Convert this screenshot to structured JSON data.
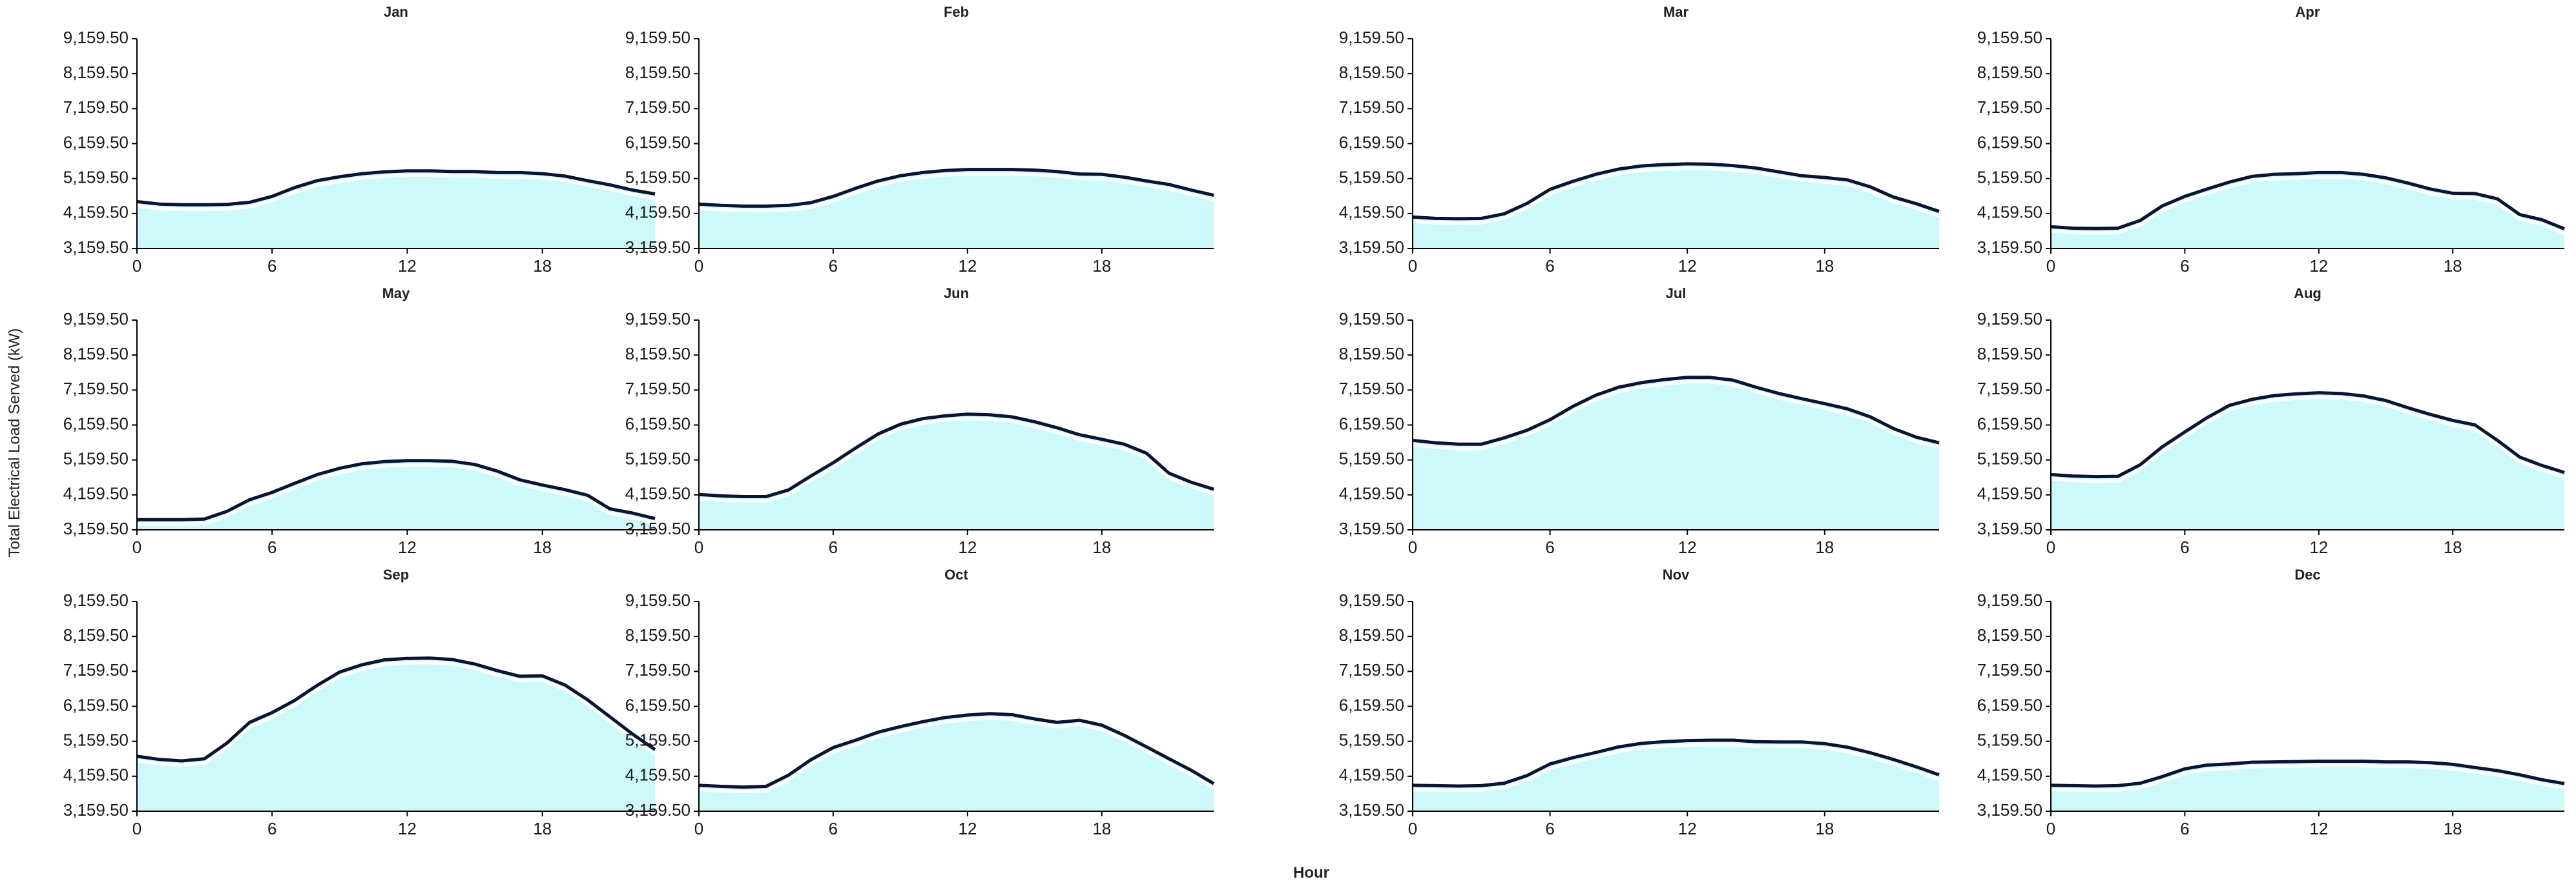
{
  "chart_data": {
    "type": "area",
    "ylabel": "Total Electrical Load Served (kW)",
    "xlabel": "Hour",
    "xlim": [
      0,
      23
    ],
    "ylim": [
      3159.5,
      9159.5
    ],
    "xticks": [
      "0",
      "6",
      "12",
      "18"
    ],
    "yticks": [
      "3,159.50",
      "4,159.50",
      "5,159.50",
      "6,159.50",
      "7,159.50",
      "8,159.50",
      "9,159.50"
    ],
    "series": [
      {
        "name": "Jan",
        "values": [
          4500,
          4430,
          4410,
          4410,
          4420,
          4480,
          4650,
          4900,
          5100,
          5210,
          5300,
          5350,
          5380,
          5380,
          5360,
          5360,
          5330,
          5330,
          5300,
          5230,
          5100,
          4980,
          4830,
          4720
        ]
      },
      {
        "name": "Feb",
        "values": [
          4430,
          4390,
          4370,
          4370,
          4390,
          4470,
          4650,
          4880,
          5090,
          5240,
          5330,
          5390,
          5420,
          5420,
          5420,
          5400,
          5360,
          5290,
          5280,
          5200,
          5090,
          4990,
          4830,
          4680
        ]
      },
      {
        "name": "Mar",
        "values": [
          4060,
          4020,
          4010,
          4020,
          4150,
          4450,
          4850,
          5080,
          5280,
          5430,
          5520,
          5560,
          5580,
          5570,
          5530,
          5460,
          5350,
          5240,
          5190,
          5120,
          4920,
          4630,
          4440,
          4220
        ]
      },
      {
        "name": "Apr",
        "values": [
          3780,
          3740,
          3730,
          3740,
          3960,
          4380,
          4650,
          4860,
          5060,
          5220,
          5280,
          5300,
          5330,
          5330,
          5280,
          5180,
          5030,
          4860,
          4740,
          4730,
          4580,
          4130,
          3980,
          3720
        ]
      },
      {
        "name": "May",
        "values": [
          3450,
          3450,
          3450,
          3470,
          3690,
          4020,
          4230,
          4490,
          4740,
          4920,
          5050,
          5110,
          5140,
          5140,
          5120,
          5030,
          4840,
          4590,
          4440,
          4310,
          4150,
          3760,
          3640,
          3480
        ]
      },
      {
        "name": "Jun",
        "values": [
          4170,
          4130,
          4110,
          4110,
          4300,
          4700,
          5080,
          5500,
          5900,
          6180,
          6340,
          6420,
          6470,
          6450,
          6390,
          6250,
          6080,
          5880,
          5750,
          5610,
          5350,
          4780,
          4520,
          4320
        ]
      },
      {
        "name": "Jul",
        "values": [
          5720,
          5650,
          5610,
          5610,
          5790,
          6010,
          6310,
          6690,
          7010,
          7240,
          7370,
          7460,
          7520,
          7520,
          7440,
          7240,
          7060,
          6910,
          6770,
          6620,
          6390,
          6060,
          5810,
          5650
        ]
      },
      {
        "name": "Aug",
        "values": [
          4740,
          4700,
          4680,
          4690,
          5020,
          5540,
          5960,
          6370,
          6720,
          6890,
          7000,
          7050,
          7080,
          7060,
          6990,
          6860,
          6650,
          6460,
          6290,
          6160,
          5720,
          5240,
          5000,
          4800
        ]
      },
      {
        "name": "Sep",
        "values": [
          4730,
          4640,
          4600,
          4660,
          5110,
          5700,
          5980,
          6330,
          6760,
          7140,
          7350,
          7490,
          7530,
          7540,
          7500,
          7370,
          7180,
          7020,
          7030,
          6770,
          6350,
          5860,
          5370,
          4920
        ]
      },
      {
        "name": "Oct",
        "values": [
          3900,
          3870,
          3850,
          3870,
          4190,
          4630,
          4980,
          5190,
          5420,
          5580,
          5720,
          5840,
          5910,
          5950,
          5920,
          5800,
          5700,
          5760,
          5620,
          5330,
          5000,
          4660,
          4330,
          3950
        ]
      },
      {
        "name": "Nov",
        "values": [
          3900,
          3890,
          3880,
          3890,
          3960,
          4180,
          4510,
          4690,
          4840,
          5000,
          5100,
          5150,
          5180,
          5190,
          5190,
          5150,
          5140,
          5140,
          5090,
          4990,
          4830,
          4640,
          4430,
          4200
        ]
      },
      {
        "name": "Dec",
        "values": [
          3900,
          3890,
          3880,
          3890,
          3960,
          4150,
          4370,
          4480,
          4510,
          4560,
          4570,
          4580,
          4590,
          4590,
          4590,
          4570,
          4570,
          4550,
          4500,
          4410,
          4320,
          4200,
          4060,
          3950
        ]
      }
    ],
    "colors": {
      "fill": "#cdf9fb",
      "line": "#0a1330",
      "axis": "#000000"
    }
  }
}
